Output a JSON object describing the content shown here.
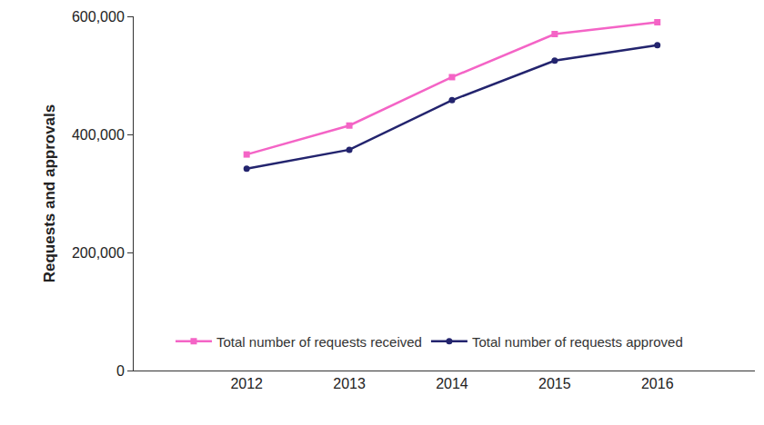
{
  "chart_data": {
    "type": "line",
    "y_label": "Requests and approvals",
    "x": [
      2012,
      2013,
      2014,
      2015,
      2016
    ],
    "series": [
      {
        "name": "Total number of requests received",
        "color": "#f464c6",
        "marker": "square",
        "values": [
          366000,
          415000,
          497000,
          570000,
          590000
        ]
      },
      {
        "name": "Total number of requests approved",
        "color": "#23246e",
        "marker": "circle",
        "values": [
          342000,
          374000,
          458000,
          525000,
          551000
        ]
      }
    ],
    "xlim": [
      2010.9,
      2016.95
    ],
    "xticks": [
      2012,
      2013,
      2014,
      2015,
      2016
    ],
    "ylim": [
      0,
      600000
    ],
    "yticks": [
      0,
      {
        "value": 200000,
        "label": "200,000"
      },
      {
        "value": 400000,
        "label": "400,000"
      },
      {
        "value": 600000,
        "label": "600,000"
      }
    ],
    "grid": false,
    "legend": "bottom"
  }
}
